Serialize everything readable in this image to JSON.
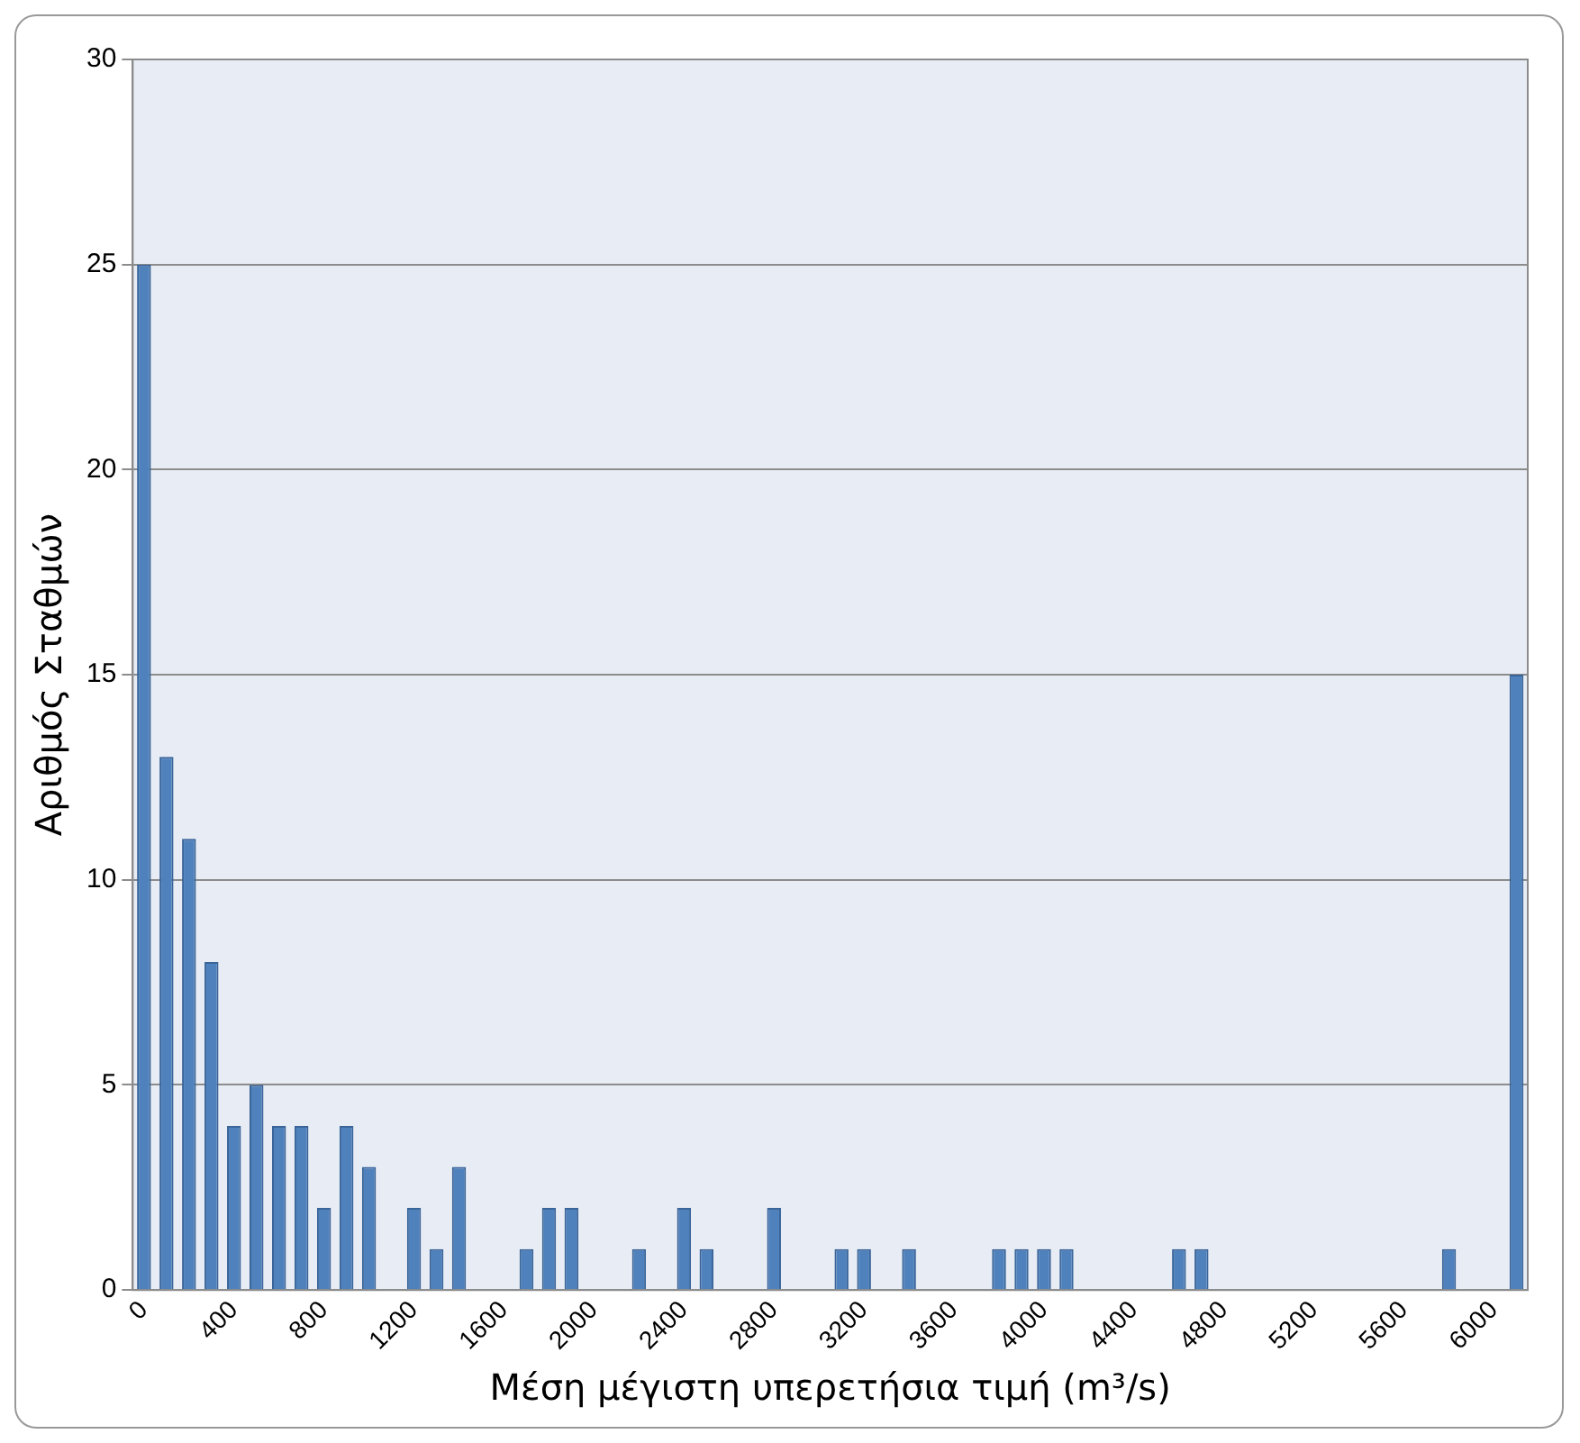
{
  "chart_data": {
    "type": "bar",
    "xlabel": "Μέση μέγιστη υπερετήσια τιμή (m³/s)",
    "ylabel": "Αριθμός Σταθμών",
    "categories": [
      "0",
      null,
      null,
      null,
      "400",
      null,
      null,
      null,
      "800",
      null,
      null,
      null,
      "1200",
      null,
      null,
      null,
      "1600",
      null,
      null,
      null,
      "2000",
      null,
      null,
      null,
      "2400",
      null,
      null,
      null,
      "2800",
      null,
      null,
      null,
      "3200",
      null,
      null,
      null,
      "3600",
      null,
      null,
      null,
      "4000",
      null,
      null,
      null,
      "4400",
      null,
      null,
      null,
      "4800",
      null,
      null,
      null,
      "5200",
      null,
      null,
      null,
      "5600",
      null,
      null,
      null,
      "6000",
      null
    ],
    "values": [
      25,
      13,
      11,
      8,
      4,
      5,
      4,
      4,
      2,
      4,
      3,
      0,
      2,
      1,
      3,
      0,
      0,
      1,
      2,
      2,
      0,
      0,
      1,
      0,
      2,
      1,
      0,
      0,
      2,
      0,
      0,
      1,
      1,
      0,
      1,
      0,
      0,
      0,
      1,
      1,
      1,
      1,
      0,
      0,
      0,
      0,
      1,
      1,
      0,
      0,
      0,
      0,
      0,
      0,
      0,
      0,
      0,
      0,
      1,
      0,
      0,
      15
    ],
    "color": "#4f81bd",
    "ylim": [
      0,
      30
    ],
    "yticks": [
      0,
      5,
      10,
      15,
      20,
      25,
      30
    ],
    "grid": "y"
  }
}
